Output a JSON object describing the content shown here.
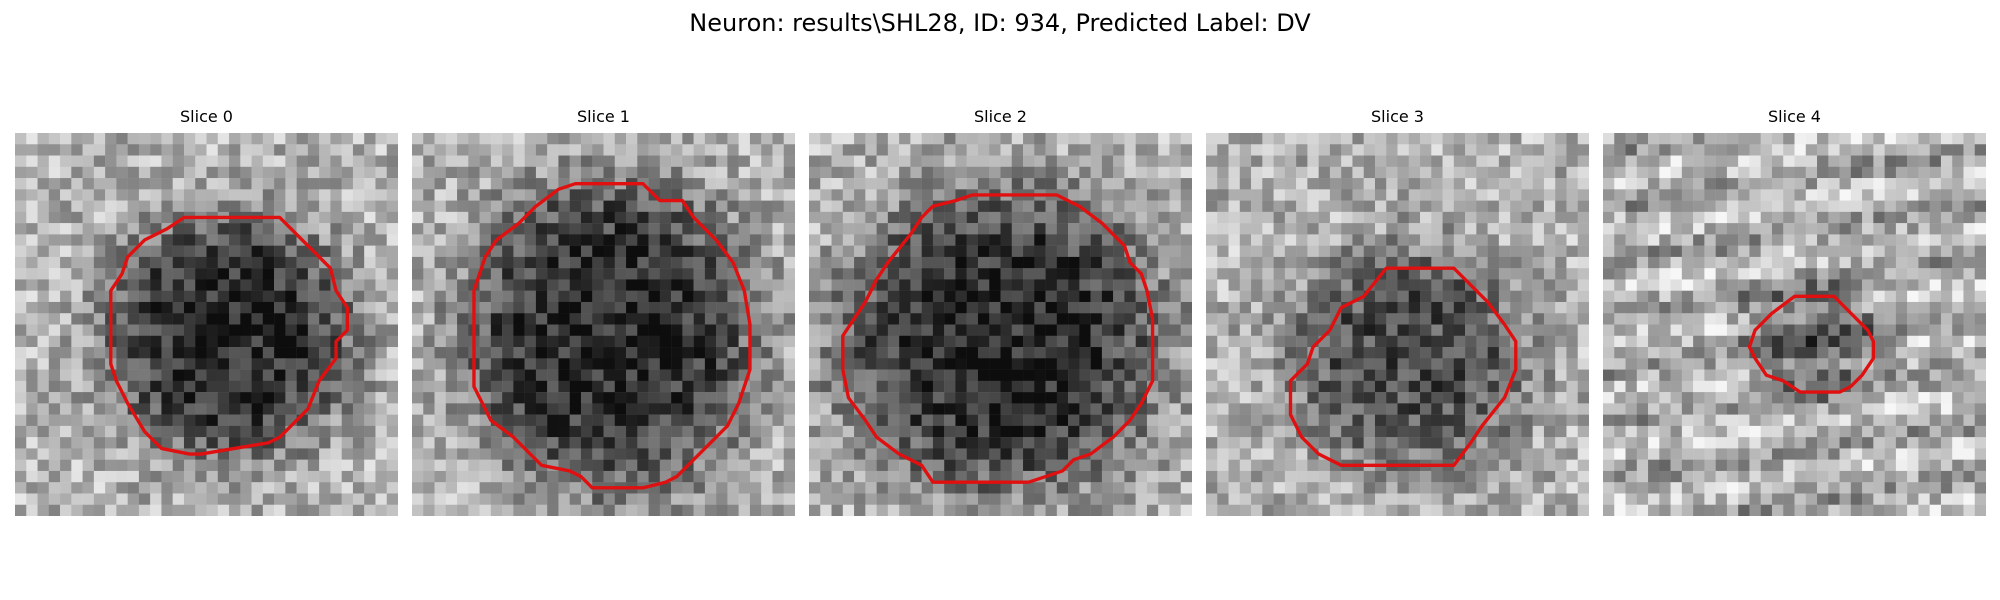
{
  "figure": {
    "title": "Neuron: results\\SHL28, ID: 934, Predicted Label: DV",
    "contour_color": "#e01010",
    "slices": [
      {
        "label": "Slice 0",
        "image": "grayscale-noise-patch",
        "contour": "red-octagon"
      },
      {
        "label": "Slice 1",
        "image": "grayscale-noise-patch",
        "contour": "red-octagon"
      },
      {
        "label": "Slice 2",
        "image": "grayscale-noise-patch",
        "contour": "red-octagon"
      },
      {
        "label": "Slice 3",
        "image": "grayscale-noise-patch",
        "contour": "red-octagon"
      },
      {
        "label": "Slice 4",
        "image": "grayscale-noise-patch",
        "contour": "red-octagon"
      }
    ]
  }
}
